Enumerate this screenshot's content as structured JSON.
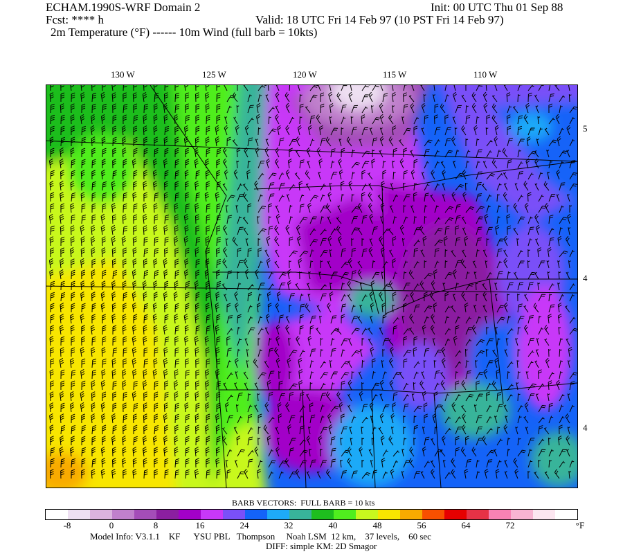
{
  "header": {
    "title": "ECHAM.1990S-WRF Domain 2",
    "init": "Init: 00 UTC Thu 01 Sep 88",
    "fcst": "Fcst: **** h",
    "valid": "Valid: 18 UTC Fri 14 Feb 97 (10 PST Fri 14 Feb 97)",
    "fields": "2m Temperature (°F) ------ 10m Wind (full barb = 10kts)"
  },
  "map": {
    "lon_labels": [
      "130 W",
      "125 W",
      "120 W",
      "115 W",
      "110 W"
    ],
    "lat_labels": [
      "5",
      "4",
      "4"
    ]
  },
  "colorbar": {
    "title": "BARB VECTORS:  FULL BARB = 10 kts",
    "unit": "°F",
    "tick_labels": [
      "-8",
      "0",
      "8",
      "16",
      "24",
      "32",
      "40",
      "48",
      "56",
      "64",
      "72"
    ],
    "colors": [
      "#ffffff",
      "#eee0f2",
      "#dbb3df",
      "#c080cc",
      "#a44db8",
      "#8b1fa0",
      "#a200c8",
      "#c838f8",
      "#7a50f8",
      "#1463f8",
      "#1eaaf8",
      "#38b49a",
      "#1ebe1e",
      "#50ee1e",
      "#c8f81e",
      "#f8e600",
      "#f8aa00",
      "#f85000",
      "#e60000",
      "#e63246",
      "#f882b4",
      "#f8b4d2",
      "#fce6f0",
      "#ffffff"
    ]
  },
  "footer": {
    "model_info": "Model Info: V3.1.1    KF      YSU PBL   Thompson     Noah LSM  12 km,    37 levels,    60 sec",
    "diff": "DIFF: simple KM: 2D Smagor"
  }
}
